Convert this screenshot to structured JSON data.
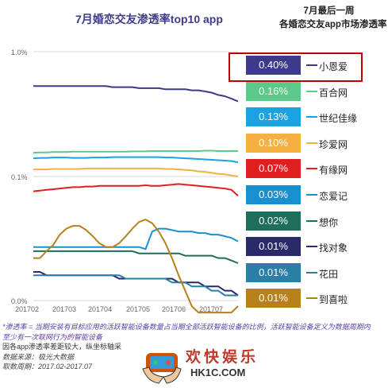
{
  "chart_data": {
    "type": "line",
    "title": "7月婚恋交友渗透率top10 app",
    "legend_header": [
      "7月最后一周",
      "各婚恋交友app市场渗透率"
    ],
    "x_ticks": [
      "201702",
      "201703",
      "201704",
      "201705",
      "201706",
      "201707"
    ],
    "y_ticks": [
      "1.0%",
      "0.1%",
      "0.0%"
    ],
    "yscale": "log",
    "grid": true,
    "series": [
      {
        "name": "小恩爱",
        "label": "0.40%",
        "color": "#3d3a8c",
        "values": [
          0.53,
          0.53,
          0.53,
          0.53,
          0.53,
          0.53,
          0.53,
          0.53,
          0.53,
          0.53,
          0.53,
          0.53,
          0.52,
          0.52,
          0.52,
          0.52,
          0.51,
          0.51,
          0.51,
          0.51,
          0.5,
          0.5,
          0.5,
          0.5,
          0.49,
          0.49,
          0.48,
          0.47,
          0.45,
          0.44,
          0.42,
          0.4
        ]
      },
      {
        "name": "百合网",
        "label": "0.16%",
        "color": "#5cc98a",
        "values": [
          0.155,
          0.156,
          0.156,
          0.157,
          0.157,
          0.157,
          0.158,
          0.158,
          0.158,
          0.158,
          0.158,
          0.158,
          0.158,
          0.158,
          0.158,
          0.159,
          0.159,
          0.159,
          0.16,
          0.16,
          0.16,
          0.16,
          0.16,
          0.16,
          0.16,
          0.16,
          0.161,
          0.161,
          0.16,
          0.16,
          0.16,
          0.16
        ]
      },
      {
        "name": "世纪佳缘",
        "label": "0.13%",
        "color": "#1aa3e0",
        "values": [
          0.14,
          0.141,
          0.141,
          0.142,
          0.142,
          0.142,
          0.141,
          0.141,
          0.141,
          0.142,
          0.142,
          0.142,
          0.143,
          0.143,
          0.143,
          0.143,
          0.143,
          0.143,
          0.143,
          0.143,
          0.142,
          0.142,
          0.141,
          0.14,
          0.139,
          0.138,
          0.137,
          0.136,
          0.135,
          0.134,
          0.133,
          0.13
        ]
      },
      {
        "name": "珍爱网",
        "label": "0.10%",
        "color": "#f5b041",
        "values": [
          0.114,
          0.114,
          0.114,
          0.115,
          0.115,
          0.115,
          0.115,
          0.115,
          0.116,
          0.116,
          0.116,
          0.116,
          0.116,
          0.116,
          0.116,
          0.116,
          0.116,
          0.116,
          0.116,
          0.116,
          0.115,
          0.115,
          0.114,
          0.113,
          0.112,
          0.11,
          0.109,
          0.107,
          0.105,
          0.104,
          0.102,
          0.1
        ]
      },
      {
        "name": "有缘网",
        "label": "0.07%",
        "color": "#e02020",
        "values": [
          0.076,
          0.077,
          0.078,
          0.079,
          0.08,
          0.081,
          0.082,
          0.082,
          0.083,
          0.083,
          0.084,
          0.084,
          0.084,
          0.084,
          0.084,
          0.084,
          0.084,
          0.085,
          0.084,
          0.084,
          0.085,
          0.086,
          0.087,
          0.086,
          0.085,
          0.084,
          0.083,
          0.082,
          0.081,
          0.08,
          0.078,
          0.07
        ]
      },
      {
        "name": "恋爱记",
        "label": "0.03%",
        "color": "#1a8fd0",
        "values": [
          0.027,
          0.027,
          0.027,
          0.027,
          0.027,
          0.027,
          0.027,
          0.027,
          0.027,
          0.027,
          0.027,
          0.027,
          0.027,
          0.027,
          0.027,
          0.027,
          0.027,
          0.026,
          0.036,
          0.038,
          0.038,
          0.037,
          0.036,
          0.036,
          0.036,
          0.035,
          0.035,
          0.034,
          0.034,
          0.033,
          0.032,
          0.03
        ]
      },
      {
        "name": "想你",
        "label": "0.02%",
        "color": "#1e6e5c",
        "values": [
          0.025,
          0.025,
          0.025,
          0.025,
          0.025,
          0.025,
          0.025,
          0.025,
          0.025,
          0.025,
          0.025,
          0.025,
          0.025,
          0.025,
          0.025,
          0.025,
          0.024,
          0.024,
          0.024,
          0.024,
          0.024,
          0.024,
          0.024,
          0.023,
          0.023,
          0.023,
          0.023,
          0.023,
          0.022,
          0.022,
          0.021,
          0.02
        ]
      },
      {
        "name": "找对象",
        "label": "0.01%",
        "color": "#2a2a6a",
        "values": [
          0.017,
          0.017,
          0.016,
          0.016,
          0.016,
          0.016,
          0.016,
          0.016,
          0.016,
          0.016,
          0.016,
          0.016,
          0.016,
          0.015,
          0.015,
          0.015,
          0.015,
          0.015,
          0.015,
          0.015,
          0.015,
          0.015,
          0.014,
          0.014,
          0.014,
          0.014,
          0.013,
          0.013,
          0.013,
          0.012,
          0.012,
          0.011
        ]
      },
      {
        "name": "花田",
        "label": "0.01%",
        "color": "#2a7fa8",
        "values": [
          0.016,
          0.016,
          0.016,
          0.016,
          0.016,
          0.016,
          0.016,
          0.016,
          0.016,
          0.016,
          0.016,
          0.016,
          0.016,
          0.016,
          0.015,
          0.015,
          0.015,
          0.015,
          0.015,
          0.015,
          0.015,
          0.014,
          0.014,
          0.014,
          0.013,
          0.013,
          0.013,
          0.012,
          0.012,
          0.011,
          0.011,
          0.011
        ]
      },
      {
        "name": "到喜啦",
        "label": "0.01%",
        "color": "#b8801a",
        "values": [
          0.022,
          0.022,
          0.025,
          0.028,
          0.034,
          0.038,
          0.04,
          0.04,
          0.037,
          0.033,
          0.029,
          0.027,
          0.027,
          0.029,
          0.033,
          0.038,
          0.043,
          0.045,
          0.042,
          0.036,
          0.029,
          0.022,
          0.016,
          0.012,
          0.009,
          0.008,
          0.008,
          0.008,
          0.008,
          0.008,
          0.008,
          0.009
        ]
      }
    ]
  },
  "notes": {
    "line1": "*渗透率 = 当期安装有目标应用的活跃智能设备数量占当期全部活跃智能设备的比例，活跃智能设备定义为数据周期内至少有一次联网行为的智能设备",
    "line2": "因各app渗透率差距较大，纵坐标轴采",
    "line3": "数据来源：极光大数据",
    "line4": "取数周期：2017.02-2017.07"
  },
  "watermark": {
    "text": "欢快娱乐",
    "site": "HK1C.COM"
  }
}
